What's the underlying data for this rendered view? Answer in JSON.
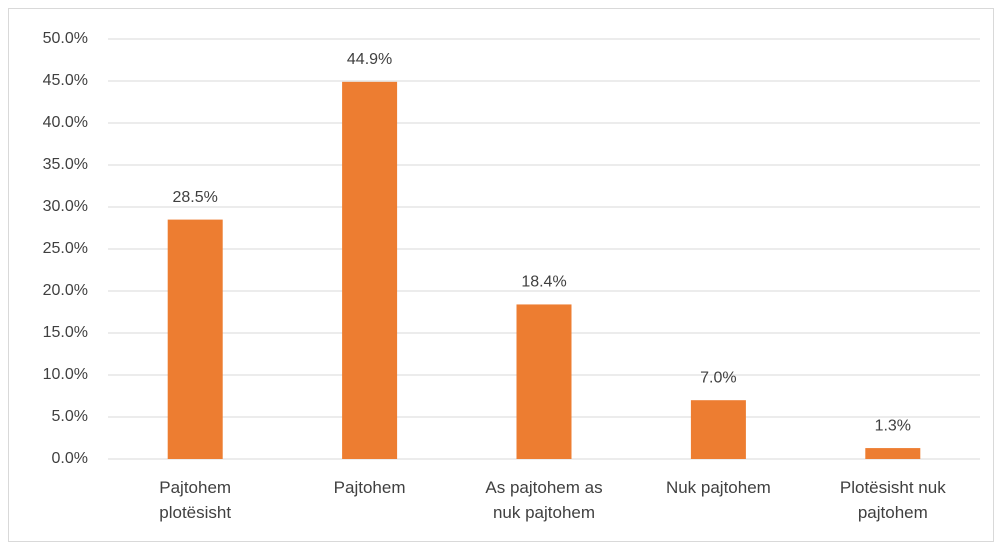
{
  "chart_data": {
    "type": "bar",
    "categories": [
      "Pajtohem plotësisht",
      "Pajtohem",
      "As pajtohem as nuk pajtohem",
      "Nuk pajtohem",
      "Plotësisht nuk pajtohem"
    ],
    "values": [
      28.5,
      44.9,
      18.4,
      7.0,
      1.3
    ],
    "value_labels": [
      "28.5%",
      "44.9%",
      "18.4%",
      "7.0%",
      "1.3%"
    ],
    "color": "#ed7d31",
    "ylim": [
      0,
      50
    ],
    "yticks": [
      {
        "value": 0,
        "label": "0.0%"
      },
      {
        "value": 5,
        "label": "5.0%"
      },
      {
        "value": 10,
        "label": "10.0%"
      },
      {
        "value": 15,
        "label": "15.0%"
      },
      {
        "value": 20,
        "label": "20.0%"
      },
      {
        "value": 25,
        "label": "25.0%"
      },
      {
        "value": 30,
        "label": "30.0%"
      },
      {
        "value": 35,
        "label": "35.0%"
      },
      {
        "value": 40,
        "label": "40.0%"
      },
      {
        "value": 45,
        "label": "45.0%"
      },
      {
        "value": 50,
        "label": "50.0%"
      }
    ],
    "grid": true
  }
}
